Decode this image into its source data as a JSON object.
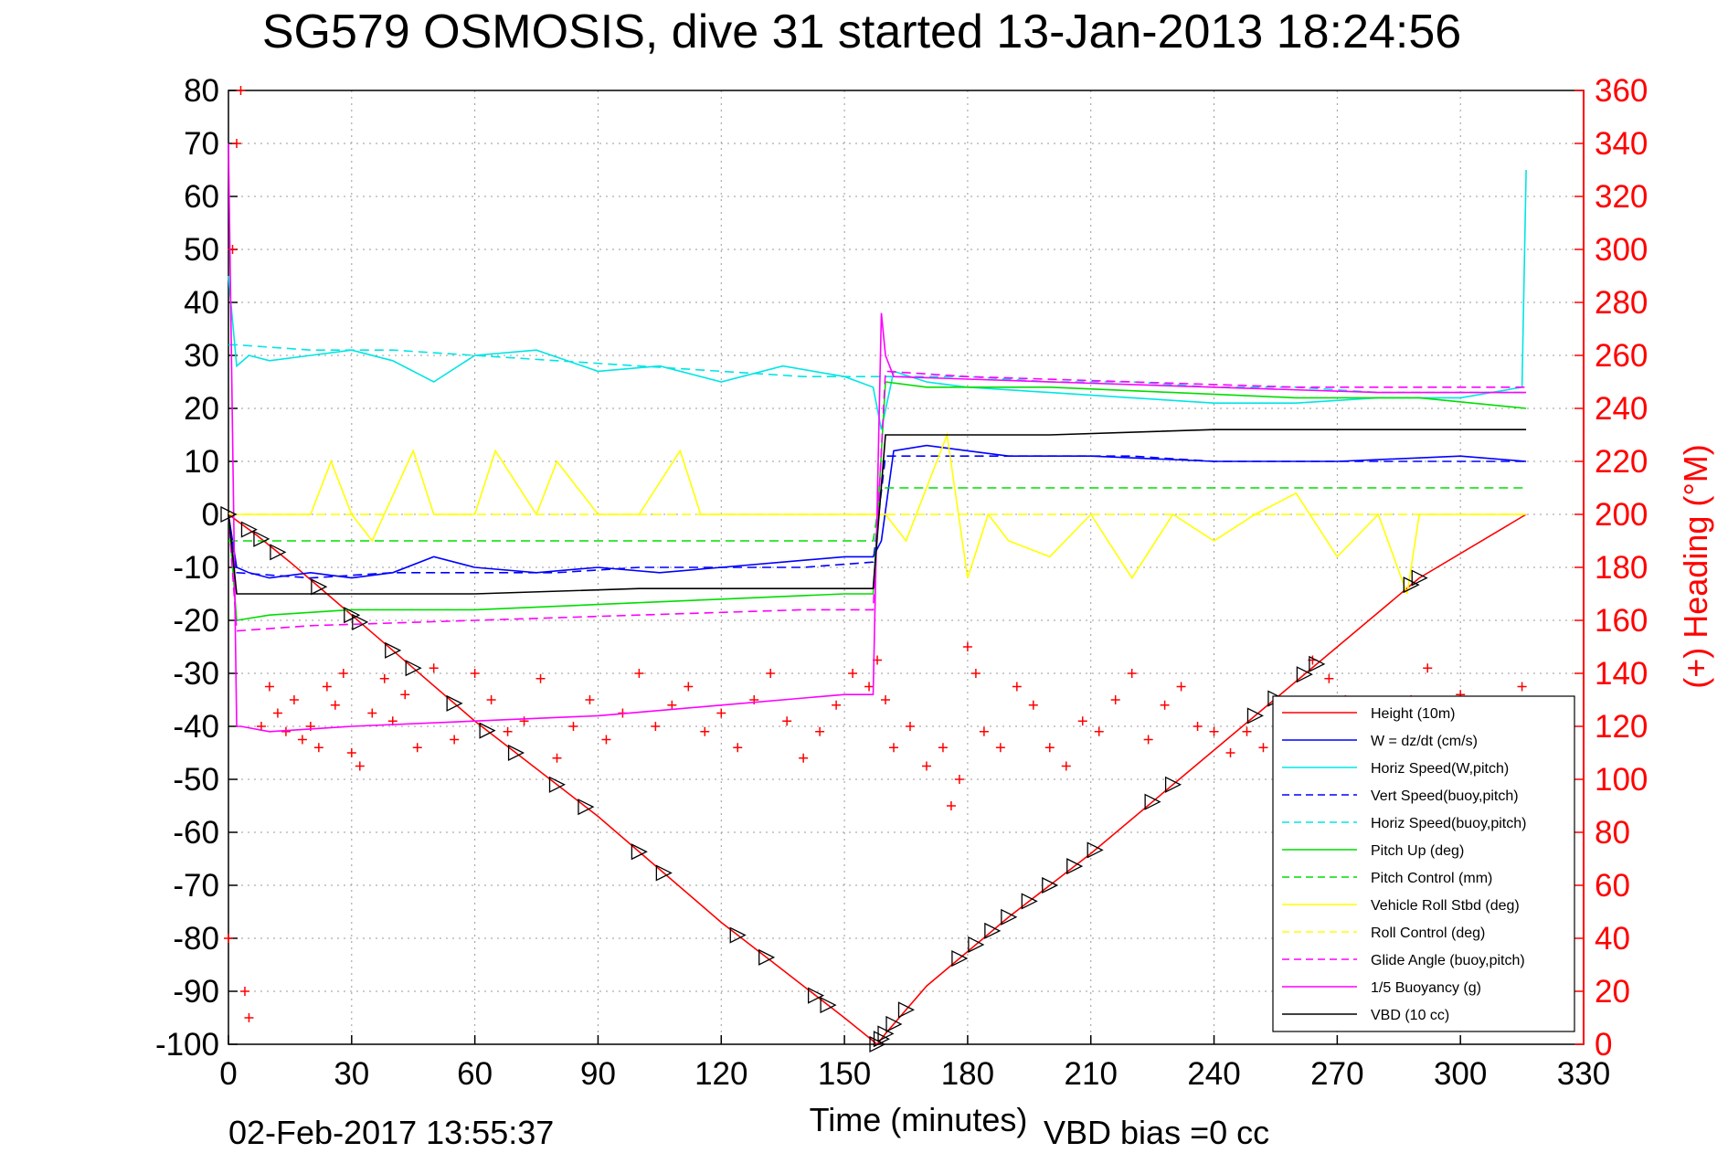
{
  "chart_data": {
    "type": "line",
    "title": "SG579 OSMOSIS, dive 31 started 13-Jan-2013 18:24:56",
    "xlabel": "Time (minutes)",
    "ylabel": "",
    "y2label": "(+) Heading (°M)",
    "xlim": [
      0,
      330
    ],
    "ylim": [
      -100,
      80
    ],
    "y2lim": [
      0,
      360
    ],
    "xticks": [
      "0",
      "30",
      "60",
      "90",
      "120",
      "150",
      "180",
      "210",
      "240",
      "270",
      "300",
      "330"
    ],
    "yticks": [
      "80",
      "70",
      "60",
      "50",
      "40",
      "30",
      "20",
      "10",
      "0",
      "-10",
      "-20",
      "-30",
      "-40",
      "-50",
      "-60",
      "-70",
      "-80",
      "-90",
      "-100"
    ],
    "y2ticks": [
      "360",
      "340",
      "320",
      "300",
      "280",
      "260",
      "240",
      "220",
      "200",
      "180",
      "160",
      "140",
      "120",
      "100",
      "80",
      "60",
      "40",
      "20",
      "0"
    ],
    "grid": true,
    "legend_position": "lower-right",
    "footer_date": "02-Feb-2017 13:55:37",
    "footer_note": "VBD bias =0 cc",
    "series": [
      {
        "name": "Height (10m)",
        "color": "#ff0000",
        "style": "solid",
        "x": [
          0,
          7,
          15,
          30,
          45,
          60,
          75,
          90,
          105,
          120,
          135,
          150,
          158,
          160,
          170,
          190,
          210,
          230,
          250,
          270,
          290,
          316
        ],
        "y": [
          0,
          -4,
          -9,
          -19,
          -29,
          -39,
          -48,
          -57,
          -67,
          -77,
          -86,
          -95,
          -100,
          -98,
          -89,
          -76,
          -64,
          -51,
          -38,
          -25,
          -12,
          0
        ]
      },
      {
        "name": "W = dz/dt (cm/s)",
        "color": "#0000ff",
        "style": "solid",
        "x": [
          0,
          2,
          5,
          10,
          20,
          30,
          40,
          50,
          60,
          75,
          90,
          105,
          120,
          135,
          150,
          157,
          159,
          162,
          170,
          180,
          190,
          210,
          240,
          270,
          300,
          316
        ],
        "y": [
          0,
          -10,
          -11,
          -12,
          -11,
          -12,
          -11,
          -8,
          -10,
          -11,
          -10,
          -11,
          -10,
          -9,
          -8,
          -8,
          -5,
          12,
          13,
          12,
          11,
          11,
          10,
          10,
          11,
          10
        ]
      },
      {
        "name": "Horiz Speed(W,pitch)",
        "color": "#00e5e5",
        "style": "solid",
        "x": [
          0,
          2,
          5,
          10,
          20,
          30,
          40,
          50,
          60,
          75,
          90,
          105,
          120,
          135,
          150,
          157,
          159,
          162,
          170,
          180,
          200,
          220,
          240,
          260,
          280,
          300,
          315,
          316
        ],
        "y": [
          45,
          28,
          30,
          29,
          30,
          31,
          29,
          25,
          30,
          31,
          27,
          28,
          25,
          28,
          26,
          24,
          16,
          27,
          25,
          24,
          23,
          22,
          21,
          21,
          22,
          22,
          24,
          65
        ]
      },
      {
        "name": "Vert Speed(buoy,pitch)",
        "color": "#0000ff",
        "style": "dashed",
        "x": [
          0,
          2,
          20,
          40,
          60,
          80,
          100,
          120,
          140,
          157,
          160,
          180,
          200,
          220,
          240,
          260,
          280,
          300,
          316
        ],
        "y": [
          0,
          -11,
          -12,
          -11,
          -11,
          -11,
          -10,
          -10,
          -10,
          -9,
          11,
          11,
          11,
          11,
          10,
          10,
          10,
          10,
          10
        ]
      },
      {
        "name": "Horiz Speed(buoy,pitch)",
        "color": "#00e5e5",
        "style": "dashed",
        "x": [
          0,
          2,
          20,
          40,
          60,
          80,
          100,
          120,
          140,
          157,
          160,
          180,
          200,
          220,
          240,
          260,
          280,
          300,
          316
        ],
        "y": [
          32,
          32,
          31,
          31,
          30,
          29,
          28,
          27,
          26,
          26,
          26,
          26,
          25,
          25,
          24,
          24,
          23,
          23,
          23
        ]
      },
      {
        "name": "Pitch Up (deg)",
        "color": "#00dd00",
        "style": "solid",
        "x": [
          0,
          2,
          10,
          30,
          60,
          90,
          120,
          150,
          157,
          160,
          170,
          200,
          230,
          260,
          290,
          316
        ],
        "y": [
          0,
          -20,
          -19,
          -18,
          -18,
          -17,
          -16,
          -15,
          -15,
          25,
          24,
          24,
          23,
          22,
          22,
          20
        ]
      },
      {
        "name": "Pitch Control (mm)",
        "color": "#00dd00",
        "style": "dashed",
        "x": [
          0,
          2,
          157,
          159,
          316
        ],
        "y": [
          -5,
          -5,
          -5,
          5,
          5
        ]
      },
      {
        "name": "Vehicle Roll Stbd (deg)",
        "color": "#ffff00",
        "style": "solid",
        "x": [
          0,
          10,
          20,
          25,
          30,
          35,
          45,
          50,
          60,
          65,
          75,
          80,
          90,
          100,
          110,
          115,
          120,
          130,
          140,
          150,
          157,
          160,
          165,
          175,
          180,
          185,
          190,
          200,
          210,
          220,
          230,
          240,
          250,
          260,
          270,
          280,
          287,
          290,
          300,
          316
        ],
        "y": [
          0,
          0,
          0,
          10,
          0,
          -5,
          12,
          0,
          0,
          12,
          0,
          10,
          0,
          0,
          12,
          0,
          0,
          0,
          0,
          0,
          0,
          0,
          -5,
          15,
          -12,
          0,
          -5,
          -8,
          0,
          -12,
          0,
          -5,
          0,
          4,
          -8,
          0,
          -15,
          0,
          0,
          0
        ]
      },
      {
        "name": "Roll Control (deg)",
        "color": "#ffff00",
        "style": "dashed",
        "x": [
          0,
          60,
          120,
          157,
          160,
          180,
          200,
          250,
          290,
          316
        ],
        "y": [
          0,
          0,
          0,
          0,
          0,
          0,
          0,
          0,
          0,
          0
        ]
      },
      {
        "name": "Glide Angle (buoy,pitch)",
        "color": "#ff00ff",
        "style": "dashed",
        "x": [
          0,
          2,
          20,
          60,
          100,
          140,
          157,
          160,
          180,
          220,
          260,
          300,
          316
        ],
        "y": [
          0,
          -22,
          -21,
          -20,
          -19,
          -18,
          -18,
          27,
          26,
          25,
          24,
          24,
          24
        ]
      },
      {
        "name": "1/5 Buoyancy (g)",
        "color": "#ff00ff",
        "style": "solid",
        "x": [
          0,
          1,
          2,
          3,
          10,
          30,
          60,
          90,
          120,
          150,
          157,
          159,
          160,
          162,
          200,
          240,
          280,
          316
        ],
        "y": [
          70,
          15,
          -40,
          -40,
          -41,
          -40,
          -39,
          -38,
          -36,
          -34,
          -34,
          38,
          30,
          26,
          25,
          24,
          23,
          23
        ]
      },
      {
        "name": "VBD (10 cc)",
        "color": "#000000",
        "style": "solid",
        "x": [
          0,
          2,
          20,
          60,
          100,
          140,
          157,
          160,
          200,
          240,
          280,
          316
        ],
        "y": [
          0,
          -15,
          -15,
          -15,
          -14,
          -14,
          -14,
          15,
          15,
          16,
          16,
          16
        ]
      }
    ],
    "heading_series": {
      "name": "(+) Heading (°M)",
      "color": "#ff0000",
      "axis": "right",
      "marker": "+",
      "x": [
        0,
        1,
        2,
        3,
        4,
        5,
        8,
        10,
        12,
        14,
        16,
        18,
        20,
        22,
        24,
        26,
        28,
        30,
        32,
        35,
        38,
        40,
        43,
        46,
        50,
        55,
        60,
        64,
        68,
        72,
        76,
        80,
        84,
        88,
        92,
        96,
        100,
        104,
        108,
        112,
        116,
        120,
        124,
        128,
        132,
        136,
        140,
        144,
        148,
        152,
        156,
        158,
        160,
        162,
        166,
        170,
        174,
        176,
        178,
        180,
        182,
        184,
        188,
        192,
        196,
        200,
        204,
        208,
        212,
        216,
        220,
        224,
        228,
        232,
        236,
        240,
        244,
        248,
        252,
        256,
        260,
        264,
        268,
        272,
        276,
        280,
        284,
        288,
        292,
        296,
        300,
        304,
        308,
        312,
        315
      ],
      "y": [
        40,
        300,
        340,
        360,
        20,
        10,
        120,
        135,
        125,
        118,
        130,
        115,
        120,
        112,
        135,
        128,
        140,
        110,
        105,
        125,
        138,
        122,
        132,
        112,
        142,
        115,
        140,
        130,
        118,
        122,
        138,
        108,
        120,
        130,
        115,
        125,
        140,
        120,
        128,
        135,
        118,
        125,
        112,
        130,
        140,
        122,
        108,
        118,
        128,
        140,
        135,
        145,
        130,
        112,
        120,
        105,
        112,
        90,
        100,
        150,
        140,
        118,
        112,
        135,
        128,
        112,
        105,
        122,
        118,
        130,
        140,
        115,
        128,
        135,
        120,
        118,
        110,
        118,
        112,
        104,
        125,
        145,
        138,
        130,
        110,
        115,
        120,
        130,
        142,
        125,
        132,
        120,
        128,
        125,
        135
      ]
    },
    "height_markers_x": [
      0,
      5,
      8,
      12,
      22,
      30,
      32,
      40,
      45,
      55,
      63,
      70,
      80,
      87,
      100,
      106,
      124,
      131,
      143,
      146,
      158,
      159,
      160,
      162,
      165,
      178,
      182,
      186,
      190,
      195,
      200,
      206,
      211,
      225,
      230,
      250,
      255,
      262,
      265,
      288,
      290
    ]
  }
}
